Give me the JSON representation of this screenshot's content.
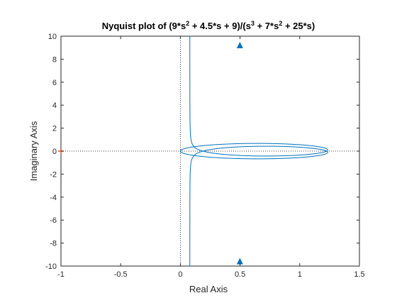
{
  "chart_data": {
    "type": "line",
    "title": {
      "prefix": "Nyquist plot of (9*s",
      "exp1": "2",
      "mid1": " + 4.5*s + 9)/(s",
      "exp2": "3",
      "mid2": " + 7*s",
      "exp3": "2",
      "suffix": " + 25*s)"
    },
    "xlabel": "Real Axis",
    "ylabel": "Imaginary Axis",
    "xlim": [
      -1,
      1.5
    ],
    "ylim": [
      -10,
      10
    ],
    "x_ticks": [
      -1,
      -0.5,
      0,
      0.5,
      1,
      1.5
    ],
    "x_tick_labels": [
      "-1",
      "-0.5",
      "0",
      "0.5",
      "1",
      "1.5"
    ],
    "y_ticks": [
      -10,
      -8,
      -6,
      -4,
      -2,
      0,
      2,
      4,
      6,
      8,
      10
    ],
    "y_tick_labels": [
      "-10",
      "-8",
      "-6",
      "-4",
      "-2",
      "0",
      "2",
      "4",
      "6",
      "8",
      "10"
    ],
    "grid": false,
    "reference_lines": {
      "x": 0,
      "y": 0,
      "style": "dotted"
    },
    "critical_point": {
      "x": -1,
      "y": 0,
      "marker": "+"
    },
    "series": [
      {
        "color": "#0072BD",
        "transfer_function": {
          "numerator": [
            9,
            4.5,
            9
          ],
          "denominator": [
            1,
            7,
            25,
            0
          ]
        },
        "mirror_conjugate": true,
        "direction_arrows_at": [
          9.2,
          -9.6
        ]
      }
    ],
    "colors": {
      "series": "#0072BD",
      "axes": "#262626",
      "critical": "#D95319"
    }
  }
}
